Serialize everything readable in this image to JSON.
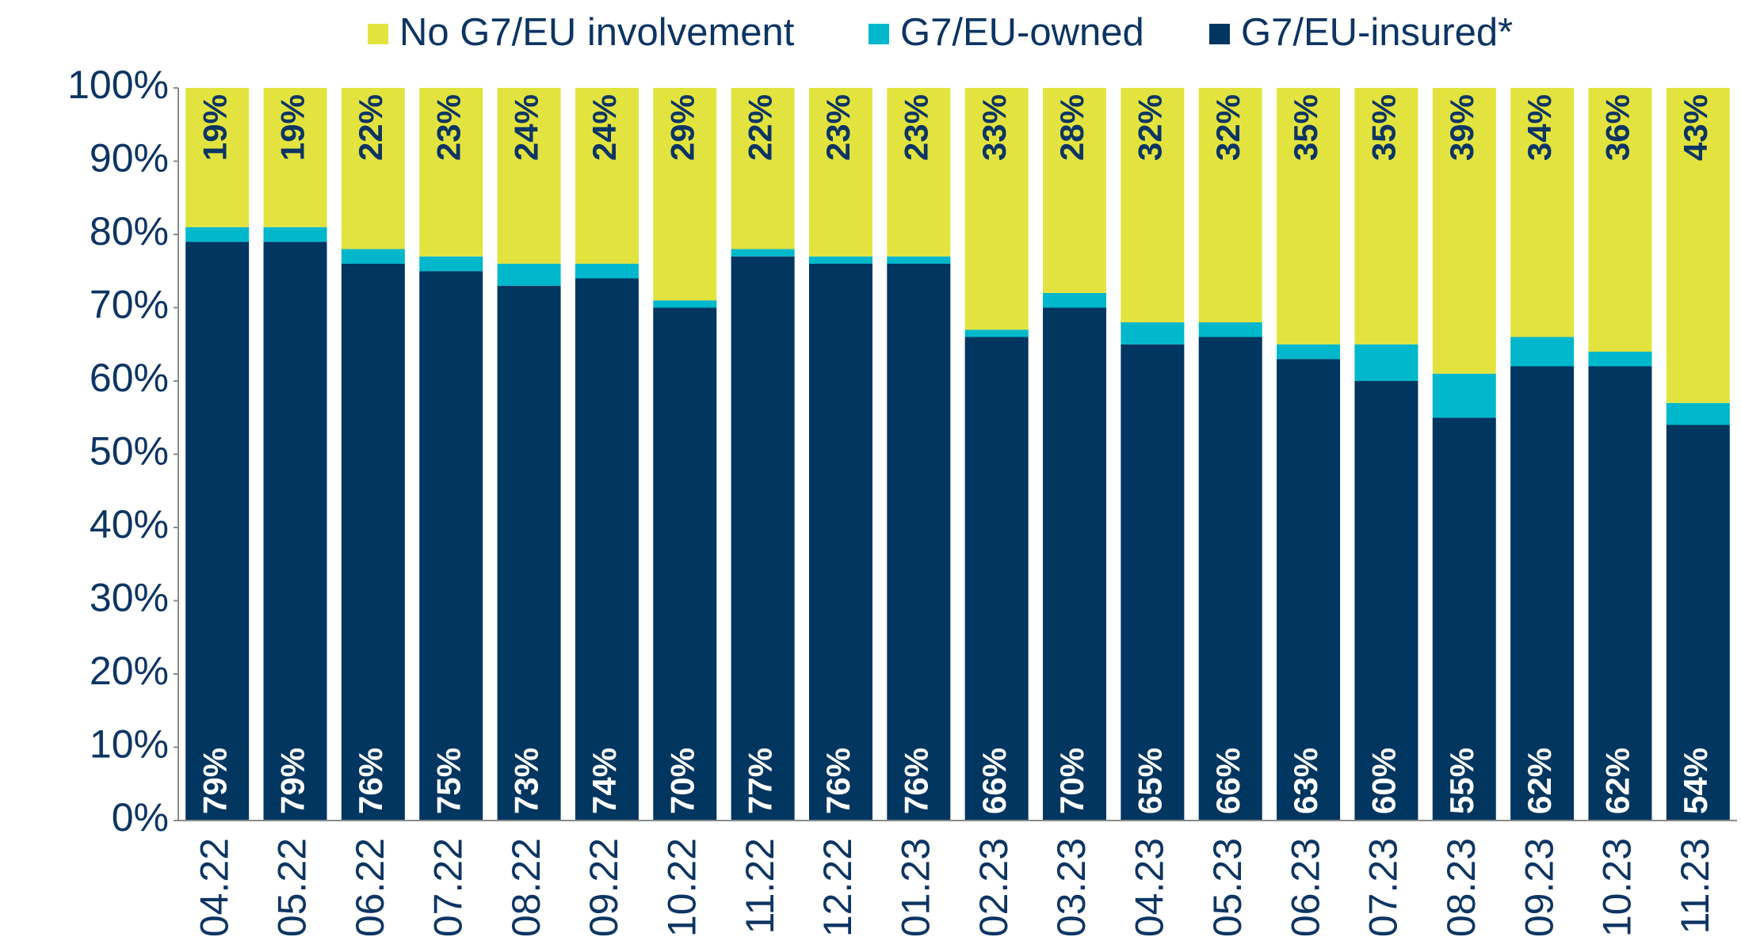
{
  "chart_data": {
    "type": "bar",
    "stacked": true,
    "categories": [
      "04.22",
      "05.22",
      "06.22",
      "07.22",
      "08.22",
      "09.22",
      "10.22",
      "11.22",
      "12.22",
      "01.23",
      "02.23",
      "03.23",
      "04.23",
      "05.23",
      "06.23",
      "07.23",
      "08.23",
      "09.23",
      "10.23",
      "11.23"
    ],
    "series": [
      {
        "name": "G7/EU-insured*",
        "color": "#003660",
        "values": [
          79,
          79,
          76,
          75,
          73,
          74,
          70,
          77,
          76,
          76,
          66,
          70,
          65,
          66,
          63,
          60,
          55,
          62,
          62,
          54
        ],
        "value_labels": [
          "79%",
          "79%",
          "76%",
          "75%",
          "73%",
          "74%",
          "70%",
          "77%",
          "76%",
          "76%",
          "66%",
          "70%",
          "65%",
          "66%",
          "63%",
          "60%",
          "55%",
          "62%",
          "62%",
          "54%"
        ]
      },
      {
        "name": "G7/EU-owned",
        "color": "#00b7cc",
        "values": [
          2,
          2,
          2,
          2,
          3,
          2,
          1,
          1,
          1,
          1,
          1,
          2,
          3,
          2,
          2,
          5,
          6,
          4,
          2,
          3
        ]
      },
      {
        "name": "No G7/EU involvement",
        "color": "#e3e340",
        "values": [
          19,
          19,
          22,
          23,
          24,
          24,
          29,
          22,
          23,
          23,
          33,
          28,
          32,
          32,
          35,
          35,
          39,
          34,
          36,
          43
        ],
        "value_labels": [
          "19%",
          "19%",
          "22%",
          "23%",
          "24%",
          "24%",
          "29%",
          "22%",
          "23%",
          "23%",
          "33%",
          "28%",
          "32%",
          "32%",
          "35%",
          "35%",
          "39%",
          "34%",
          "36%",
          "43%"
        ]
      }
    ],
    "ylim": [
      0,
      100
    ],
    "yticks": [
      {
        "value": 0,
        "label": "0%"
      },
      {
        "value": 10,
        "label": "10%"
      },
      {
        "value": 20,
        "label": "20%"
      },
      {
        "value": 30,
        "label": "30%"
      },
      {
        "value": 40,
        "label": "40%"
      },
      {
        "value": 50,
        "label": "50%"
      },
      {
        "value": 60,
        "label": "60%"
      },
      {
        "value": 70,
        "label": "70%"
      },
      {
        "value": 80,
        "label": "80%"
      },
      {
        "value": 90,
        "label": "90%"
      },
      {
        "value": 100,
        "label": "100%"
      }
    ],
    "legend": "top"
  }
}
